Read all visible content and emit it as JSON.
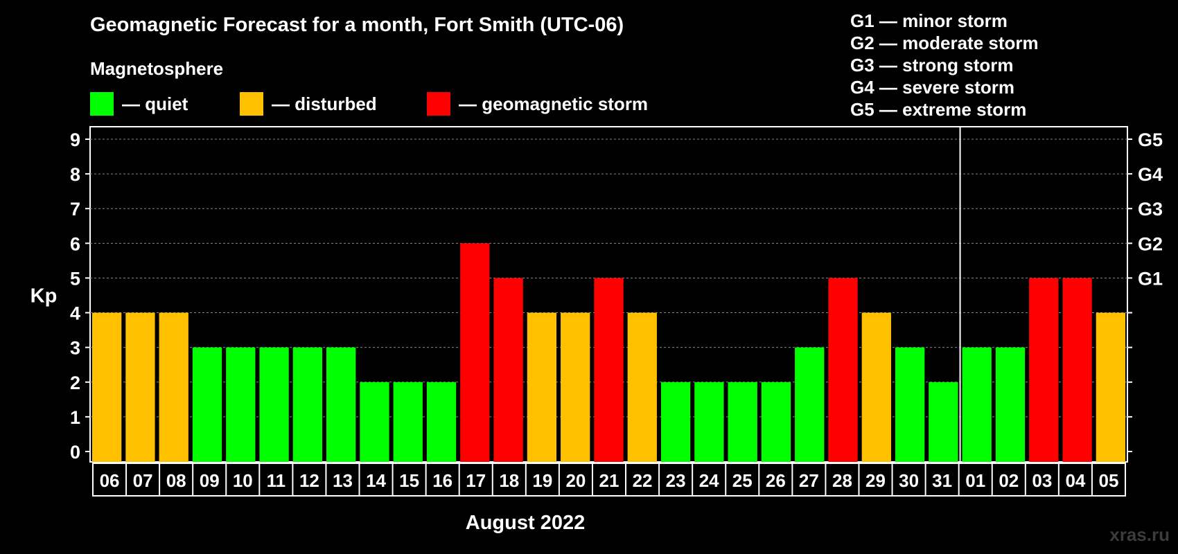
{
  "chart_data": {
    "type": "bar",
    "title": "Geomagnetic Forecast for a month, Fort Smith (UTC-06)",
    "subtitle": "Magnetosphere",
    "ylabel": "Kp",
    "xlabel": "August 2022",
    "ylim": [
      0,
      9
    ],
    "yticks": [
      "0",
      "1",
      "2",
      "3",
      "4",
      "5",
      "6",
      "7",
      "8",
      "9"
    ],
    "right_ticks": [
      {
        "value": 5,
        "label": "G1"
      },
      {
        "value": 6,
        "label": "G2"
      },
      {
        "value": 7,
        "label": "G3"
      },
      {
        "value": 8,
        "label": "G4"
      },
      {
        "value": 9,
        "label": "G5"
      }
    ],
    "grid": true,
    "month_divider_after": "31",
    "categories": [
      "06",
      "07",
      "08",
      "09",
      "10",
      "11",
      "12",
      "13",
      "14",
      "15",
      "16",
      "17",
      "18",
      "19",
      "20",
      "21",
      "22",
      "23",
      "24",
      "25",
      "26",
      "27",
      "28",
      "29",
      "30",
      "31",
      "01",
      "02",
      "03",
      "04",
      "05"
    ],
    "values": [
      4,
      4,
      4,
      3,
      3,
      3,
      3,
      3,
      2,
      2,
      2,
      6,
      5,
      4,
      4,
      5,
      4,
      2,
      2,
      2,
      2,
      3,
      5,
      4,
      3,
      2,
      3,
      3,
      5,
      5,
      4
    ],
    "colors": {
      "quiet": "#00ff00",
      "disturbed": "#ffc000",
      "storm": "#ff0000"
    },
    "legend": [
      {
        "key": "quiet",
        "label": "— quiet"
      },
      {
        "key": "disturbed",
        "label": "— disturbed"
      },
      {
        "key": "storm",
        "label": "— geomagnetic storm"
      }
    ],
    "storm_scale": [
      "G1 — minor storm",
      "G2 — moderate storm",
      "G3 — strong storm",
      "G4 — severe storm",
      "G5 — extreme storm"
    ]
  },
  "watermark": "xras.ru"
}
